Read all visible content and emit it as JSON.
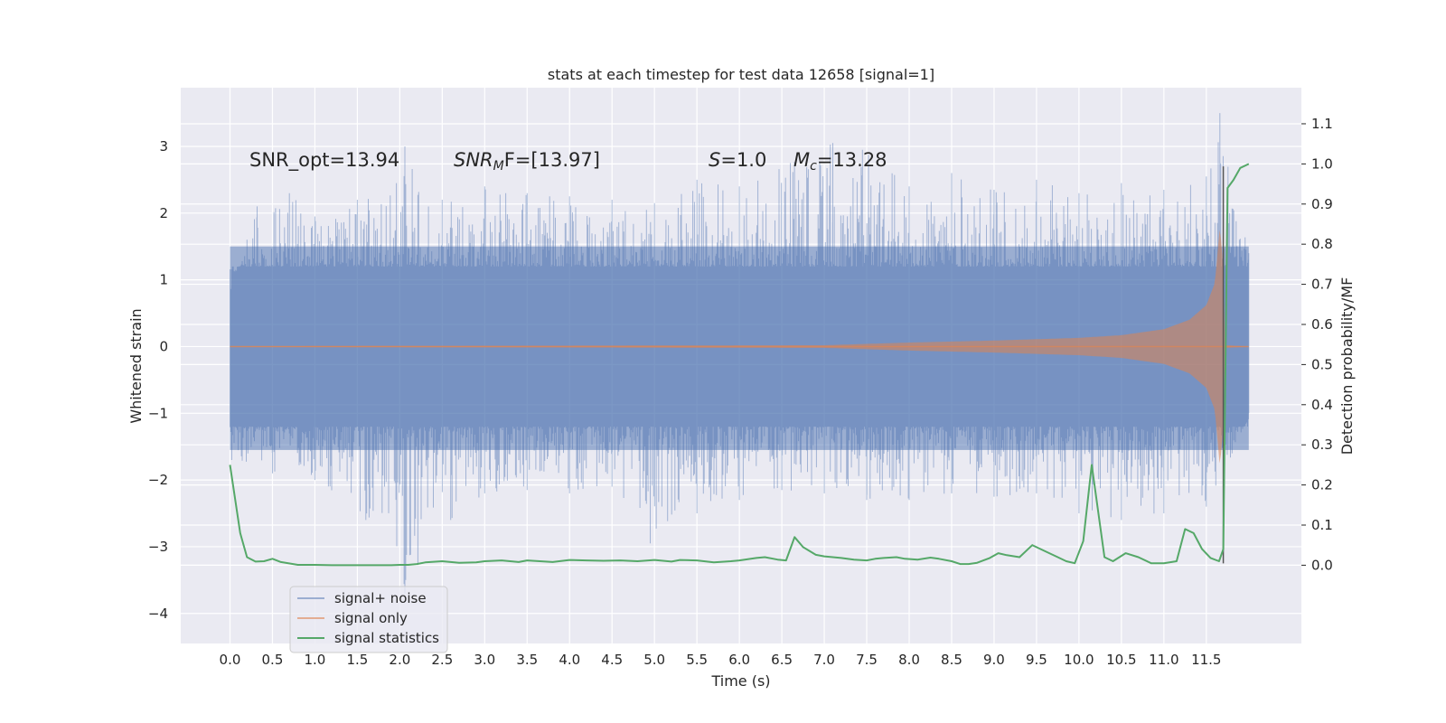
{
  "chart_data": {
    "type": "line",
    "title": "stats at each timestep for test data 12658 [signal=1]",
    "xlabel": "Time (s)",
    "ylabel": "Whitened strain",
    "ylabel_right": "Detection probability/MF",
    "xlim": [
      -0.58,
      12.62
    ],
    "ylim": [
      -4.45,
      3.88
    ],
    "ylim_right": [
      -0.195,
      1.19
    ],
    "xticks": [
      0.0,
      0.5,
      1.0,
      1.5,
      2.0,
      2.5,
      3.0,
      3.5,
      4.0,
      4.5,
      5.0,
      5.5,
      6.0,
      6.5,
      7.0,
      7.5,
      8.0,
      8.5,
      9.0,
      9.5,
      10.0,
      10.5,
      11.0,
      11.5
    ],
    "xtick_labels": [
      "0.0",
      "0.5",
      "1.0",
      "1.5",
      "2.0",
      "2.5",
      "3.0",
      "3.5",
      "4.0",
      "4.5",
      "5.0",
      "5.5",
      "6.0",
      "6.5",
      "7.0",
      "7.5",
      "8.0",
      "8.5",
      "9.0",
      "9.5",
      "10.0",
      "10.5",
      "11.0",
      "11.5"
    ],
    "yticks": [
      3,
      2,
      1,
      0,
      -1,
      -2,
      -3,
      -4
    ],
    "ytick_labels": [
      "3",
      "2",
      "1",
      "0",
      "−1",
      "−2",
      "−3",
      "−4"
    ],
    "yticks_right": [
      1.1,
      1.0,
      0.9,
      0.8,
      0.7,
      0.6,
      0.5,
      0.4,
      0.3,
      0.2,
      0.1,
      0.0
    ],
    "ytick_labels_right": [
      "1.1",
      "1.0",
      "0.9",
      "0.8",
      "0.7",
      "0.6",
      "0.5",
      "0.4",
      "0.3",
      "0.2",
      "0.1",
      "0.0"
    ],
    "grid": true,
    "legend_position": "lower-left",
    "annotations": {
      "snr_opt": "SNR_opt=13.94",
      "snr_mf_main": "SNR",
      "snr_mf_sub": "M",
      "snr_mf_tail": "F=[13.97]",
      "s_main": "S",
      "s_tail": "=1.0",
      "mc_main": "M",
      "mc_sub": "c",
      "mc_tail": "=13.28"
    },
    "vline": {
      "x": 11.7,
      "ymin": -3.25,
      "ymax": 2.7,
      "color": "#555555"
    },
    "colors": {
      "noise": "#4c72b0",
      "signal": "#dd8452",
      "stats": "#55a868",
      "background": "#eaeaf2",
      "grid": "#ffffff"
    },
    "series": [
      {
        "name": "signal+ noise",
        "axis": "left",
        "x_range": [
          0.0,
          12.0
        ],
        "envelope_peaks": [
          {
            "x": 0.02,
            "y": 0.85
          },
          {
            "x": 0.2,
            "y": 1.6
          },
          {
            "x": 0.32,
            "y": 2.1
          },
          {
            "x": 0.7,
            "y": 2.3
          },
          {
            "x": 1.0,
            "y": 1.95
          },
          {
            "x": 1.5,
            "y": 2.2
          },
          {
            "x": 1.96,
            "y": 2.45
          },
          {
            "x": 2.06,
            "y": 3.0
          },
          {
            "x": 2.5,
            "y": 2.2
          },
          {
            "x": 3.0,
            "y": 2.4
          },
          {
            "x": 3.5,
            "y": 2.3
          },
          {
            "x": 4.0,
            "y": 2.25
          },
          {
            "x": 4.5,
            "y": 2.2
          },
          {
            "x": 5.0,
            "y": 2.15
          },
          {
            "x": 5.5,
            "y": 2.5
          },
          {
            "x": 6.0,
            "y": 2.4
          },
          {
            "x": 6.6,
            "y": 2.75
          },
          {
            "x": 7.1,
            "y": 3.05
          },
          {
            "x": 7.45,
            "y": 2.95
          },
          {
            "x": 8.0,
            "y": 2.4
          },
          {
            "x": 8.5,
            "y": 2.6
          },
          {
            "x": 9.0,
            "y": 2.35
          },
          {
            "x": 9.5,
            "y": 2.5
          },
          {
            "x": 10.0,
            "y": 2.3
          },
          {
            "x": 10.5,
            "y": 2.45
          },
          {
            "x": 11.0,
            "y": 2.35
          },
          {
            "x": 11.5,
            "y": 2.55
          },
          {
            "x": 11.66,
            "y": 3.5
          },
          {
            "x": 12.0,
            "y": 1.4
          }
        ],
        "envelope_troughs": [
          {
            "x": 0.02,
            "y": -1.7
          },
          {
            "x": 0.5,
            "y": -1.9
          },
          {
            "x": 1.0,
            "y": -2.0
          },
          {
            "x": 1.6,
            "y": -2.6
          },
          {
            "x": 2.06,
            "y": -3.7
          },
          {
            "x": 2.6,
            "y": -2.6
          },
          {
            "x": 3.0,
            "y": -2.2
          },
          {
            "x": 3.5,
            "y": -2.15
          },
          {
            "x": 4.0,
            "y": -2.2
          },
          {
            "x": 4.5,
            "y": -2.1
          },
          {
            "x": 4.95,
            "y": -2.95
          },
          {
            "x": 5.5,
            "y": -2.5
          },
          {
            "x": 6.0,
            "y": -2.3
          },
          {
            "x": 6.5,
            "y": -2.15
          },
          {
            "x": 7.0,
            "y": -2.2
          },
          {
            "x": 7.5,
            "y": -2.3
          },
          {
            "x": 8.0,
            "y": -2.3
          },
          {
            "x": 8.5,
            "y": -2.2
          },
          {
            "x": 9.0,
            "y": -2.25
          },
          {
            "x": 9.5,
            "y": -2.2
          },
          {
            "x": 10.0,
            "y": -2.5
          },
          {
            "x": 10.5,
            "y": -2.6
          },
          {
            "x": 11.0,
            "y": -2.5
          },
          {
            "x": 11.5,
            "y": -2.4
          },
          {
            "x": 11.7,
            "y": -2.0
          },
          {
            "x": 12.0,
            "y": -1.0
          }
        ]
      },
      {
        "name": "signal only",
        "axis": "left",
        "x_range": [
          0.0,
          12.0
        ],
        "amplitude": [
          {
            "x": 0.0,
            "y": 0.005
          },
          {
            "x": 7.0,
            "y": 0.02
          },
          {
            "x": 7.5,
            "y": 0.04
          },
          {
            "x": 8.0,
            "y": 0.06
          },
          {
            "x": 9.0,
            "y": 0.09
          },
          {
            "x": 10.0,
            "y": 0.13
          },
          {
            "x": 10.5,
            "y": 0.17
          },
          {
            "x": 11.0,
            "y": 0.26
          },
          {
            "x": 11.3,
            "y": 0.4
          },
          {
            "x": 11.5,
            "y": 0.62
          },
          {
            "x": 11.6,
            "y": 0.95
          },
          {
            "x": 11.66,
            "y": 1.8
          },
          {
            "x": 11.7,
            "y": 1.2
          },
          {
            "x": 11.72,
            "y": 0.02
          },
          {
            "x": 12.0,
            "y": 0.0
          }
        ]
      },
      {
        "name": "signal statistics",
        "axis": "right",
        "points": [
          [
            0.0,
            0.25
          ],
          [
            0.12,
            0.08
          ],
          [
            0.2,
            0.02
          ],
          [
            0.3,
            0.009
          ],
          [
            0.4,
            0.01
          ],
          [
            0.5,
            0.016
          ],
          [
            0.6,
            0.008
          ],
          [
            0.8,
            0.001
          ],
          [
            1.0,
            0.001
          ],
          [
            1.2,
            0.0
          ],
          [
            1.5,
            0.0
          ],
          [
            1.7,
            0.0
          ],
          [
            1.9,
            0.0
          ],
          [
            2.0,
            0.001
          ],
          [
            2.1,
            0.001
          ],
          [
            2.2,
            0.003
          ],
          [
            2.3,
            0.007
          ],
          [
            2.5,
            0.01
          ],
          [
            2.7,
            0.006
          ],
          [
            2.9,
            0.007
          ],
          [
            3.0,
            0.01
          ],
          [
            3.2,
            0.012
          ],
          [
            3.4,
            0.008
          ],
          [
            3.5,
            0.012
          ],
          [
            3.8,
            0.008
          ],
          [
            4.0,
            0.013
          ],
          [
            4.2,
            0.012
          ],
          [
            4.4,
            0.011
          ],
          [
            4.6,
            0.012
          ],
          [
            4.8,
            0.01
          ],
          [
            5.0,
            0.013
          ],
          [
            5.2,
            0.009
          ],
          [
            5.3,
            0.013
          ],
          [
            5.5,
            0.012
          ],
          [
            5.7,
            0.007
          ],
          [
            5.9,
            0.01
          ],
          [
            6.0,
            0.012
          ],
          [
            6.2,
            0.018
          ],
          [
            6.3,
            0.02
          ],
          [
            6.45,
            0.014
          ],
          [
            6.55,
            0.012
          ],
          [
            6.65,
            0.07
          ],
          [
            6.75,
            0.045
          ],
          [
            6.9,
            0.026
          ],
          [
            7.0,
            0.022
          ],
          [
            7.1,
            0.02
          ],
          [
            7.2,
            0.018
          ],
          [
            7.35,
            0.014
          ],
          [
            7.5,
            0.012
          ],
          [
            7.6,
            0.016
          ],
          [
            7.7,
            0.018
          ],
          [
            7.85,
            0.02
          ],
          [
            7.95,
            0.016
          ],
          [
            8.1,
            0.014
          ],
          [
            8.25,
            0.019
          ],
          [
            8.35,
            0.016
          ],
          [
            8.5,
            0.01
          ],
          [
            8.6,
            0.003
          ],
          [
            8.7,
            0.003
          ],
          [
            8.8,
            0.006
          ],
          [
            8.95,
            0.018
          ],
          [
            9.05,
            0.03
          ],
          [
            9.15,
            0.025
          ],
          [
            9.3,
            0.02
          ],
          [
            9.45,
            0.05
          ],
          [
            9.6,
            0.035
          ],
          [
            9.75,
            0.02
          ],
          [
            9.85,
            0.01
          ],
          [
            9.95,
            0.005
          ],
          [
            10.05,
            0.06
          ],
          [
            10.15,
            0.25
          ],
          [
            10.3,
            0.02
          ],
          [
            10.4,
            0.01
          ],
          [
            10.55,
            0.03
          ],
          [
            10.7,
            0.02
          ],
          [
            10.85,
            0.005
          ],
          [
            11.0,
            0.005
          ],
          [
            11.15,
            0.01
          ],
          [
            11.25,
            0.09
          ],
          [
            11.35,
            0.08
          ],
          [
            11.45,
            0.04
          ],
          [
            11.55,
            0.018
          ],
          [
            11.65,
            0.01
          ],
          [
            11.7,
            0.04
          ],
          [
            11.75,
            0.94
          ],
          [
            11.82,
            0.96
          ],
          [
            11.9,
            0.99
          ],
          [
            12.0,
            1.0
          ]
        ]
      }
    ]
  }
}
